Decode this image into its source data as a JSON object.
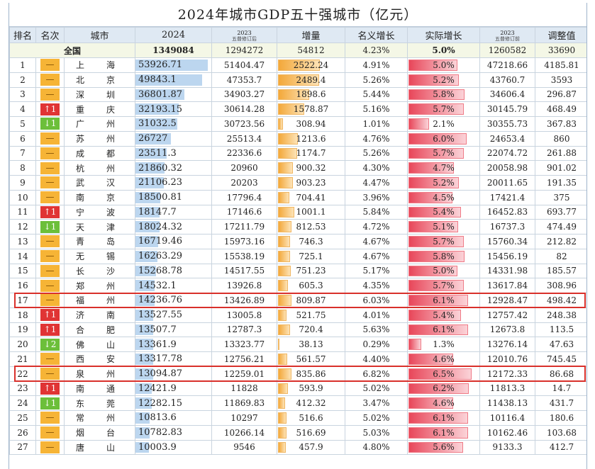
{
  "title": "2024年城市GDP五十强城市（亿元）",
  "headers": {
    "rank": "排名",
    "mingci": "名次",
    "city": "城市",
    "y2024": "2024",
    "rev_year": "2023",
    "rev_note": "五普修订后",
    "increase": "增量",
    "nominal": "名义增长",
    "real": "实际增长",
    "prev_year": "2023",
    "prev_note": "五普修订前",
    "adjust": "调整值"
  },
  "national": {
    "label": "全国",
    "gdp2024": "1349084",
    "gdp2023_rev": "1294272",
    "increase": "54812",
    "nominal": "4.23%",
    "real": "5.0%",
    "gdp2023_prev": "1260582",
    "adjust": "33690"
  },
  "colors": {
    "same": "#f6b436",
    "up": "#e03434",
    "down": "#6cbf3a",
    "highlight": "#d9302b"
  },
  "rows": [
    {
      "rank": "1",
      "mc": "—",
      "mct": "same",
      "city": "上海",
      "gdp": "53926.71",
      "gdpv": 53926.71,
      "rev": "51404.47",
      "inc": "2522.24",
      "incv": 2522.24,
      "nom": "4.91%",
      "real": "5.0%",
      "realv": 5.0,
      "prev": "47218.66",
      "adj": "4185.81"
    },
    {
      "rank": "2",
      "mc": "—",
      "mct": "same",
      "city": "北京",
      "gdp": "49843.1",
      "gdpv": 49843.1,
      "rev": "47353.7",
      "inc": "2489.4",
      "incv": 2489.4,
      "nom": "5.26%",
      "real": "5.2%",
      "realv": 5.2,
      "prev": "43760.7",
      "adj": "3593"
    },
    {
      "rank": "3",
      "mc": "—",
      "mct": "same",
      "city": "深圳",
      "gdp": "36801.87",
      "gdpv": 36801.87,
      "rev": "34903.27",
      "inc": "1898.6",
      "incv": 1898.6,
      "nom": "5.44%",
      "real": "5.8%",
      "realv": 5.8,
      "prev": "34606.4",
      "adj": "296.87"
    },
    {
      "rank": "4",
      "mc": "↑1",
      "mct": "up",
      "city": "重庆",
      "gdp": "32193.15",
      "gdpv": 32193.15,
      "rev": "30614.28",
      "inc": "1578.87",
      "incv": 1578.87,
      "nom": "5.16%",
      "real": "5.7%",
      "realv": 5.7,
      "prev": "30145.79",
      "adj": "468.49"
    },
    {
      "rank": "5",
      "mc": "↓1",
      "mct": "down",
      "city": "广州",
      "gdp": "31032.5",
      "gdpv": 31032.5,
      "rev": "30723.56",
      "inc": "308.94",
      "incv": 308.94,
      "nom": "1.01%",
      "real": "2.1%",
      "realv": 2.1,
      "prev": "30355.73",
      "adj": "367.83"
    },
    {
      "rank": "6",
      "mc": "—",
      "mct": "same",
      "city": "苏州",
      "gdp": "26727",
      "gdpv": 26727,
      "rev": "25513.4",
      "inc": "1213.6",
      "incv": 1213.6,
      "nom": "4.76%",
      "real": "6.0%",
      "realv": 6.0,
      "prev": "24653.4",
      "adj": "860"
    },
    {
      "rank": "7",
      "mc": "—",
      "mct": "same",
      "city": "成都",
      "gdp": "23511.3",
      "gdpv": 23511.3,
      "rev": "22336.6",
      "inc": "1174.7",
      "incv": 1174.7,
      "nom": "5.26%",
      "real": "5.7%",
      "realv": 5.7,
      "prev": "22074.72",
      "adj": "261.88"
    },
    {
      "rank": "8",
      "mc": "—",
      "mct": "same",
      "city": "杭州",
      "gdp": "21860.32",
      "gdpv": 21860.32,
      "rev": "20960",
      "inc": "900.32",
      "incv": 900.32,
      "nom": "4.30%",
      "real": "4.7%",
      "realv": 4.7,
      "prev": "20058.98",
      "adj": "901.02"
    },
    {
      "rank": "9",
      "mc": "—",
      "mct": "same",
      "city": "武汉",
      "gdp": "21106.23",
      "gdpv": 21106.23,
      "rev": "20203",
      "inc": "903.23",
      "incv": 903.23,
      "nom": "4.47%",
      "real": "5.2%",
      "realv": 5.2,
      "prev": "20011.65",
      "adj": "191.35"
    },
    {
      "rank": "10",
      "mc": "—",
      "mct": "same",
      "city": "南京",
      "gdp": "18500.81",
      "gdpv": 18500.81,
      "rev": "17796.4",
      "inc": "704.41",
      "incv": 704.41,
      "nom": "3.96%",
      "real": "4.5%",
      "realv": 4.5,
      "prev": "17421.4",
      "adj": "375"
    },
    {
      "rank": "11",
      "mc": "↑1",
      "mct": "up",
      "city": "宁波",
      "gdp": "18147.7",
      "gdpv": 18147.7,
      "rev": "17146.6",
      "inc": "1001.1",
      "incv": 1001.1,
      "nom": "5.84%",
      "real": "5.4%",
      "realv": 5.4,
      "prev": "16452.83",
      "adj": "693.77"
    },
    {
      "rank": "12",
      "mc": "↓1",
      "mct": "down",
      "city": "天津",
      "gdp": "18024.32",
      "gdpv": 18024.32,
      "rev": "17211.79",
      "inc": "812.53",
      "incv": 812.53,
      "nom": "4.72%",
      "real": "5.1%",
      "realv": 5.1,
      "prev": "16737.3",
      "adj": "474.49"
    },
    {
      "rank": "13",
      "mc": "—",
      "mct": "same",
      "city": "青岛",
      "gdp": "16719.46",
      "gdpv": 16719.46,
      "rev": "15973.16",
      "inc": "746.3",
      "incv": 746.3,
      "nom": "4.67%",
      "real": "5.7%",
      "realv": 5.7,
      "prev": "15760.34",
      "adj": "212.82"
    },
    {
      "rank": "14",
      "mc": "—",
      "mct": "same",
      "city": "无锡",
      "gdp": "16263.29",
      "gdpv": 16263.29,
      "rev": "15538.19",
      "inc": "725.1",
      "incv": 725.1,
      "nom": "4.67%",
      "real": "5.8%",
      "realv": 5.8,
      "prev": "15456.19",
      "adj": "82"
    },
    {
      "rank": "15",
      "mc": "—",
      "mct": "same",
      "city": "长沙",
      "gdp": "15268.78",
      "gdpv": 15268.78,
      "rev": "14517.55",
      "inc": "751.23",
      "incv": 751.23,
      "nom": "5.17%",
      "real": "5.0%",
      "realv": 5.0,
      "prev": "14331.98",
      "adj": "185.57"
    },
    {
      "rank": "16",
      "mc": "—",
      "mct": "same",
      "city": "郑州",
      "gdp": "14532.1",
      "gdpv": 14532.1,
      "rev": "13926.8",
      "inc": "605.3",
      "incv": 605.3,
      "nom": "4.35%",
      "real": "5.7%",
      "realv": 5.7,
      "prev": "13617.84",
      "adj": "308.96"
    },
    {
      "rank": "17",
      "mc": "—",
      "mct": "same",
      "city": "福州",
      "gdp": "14236.76",
      "gdpv": 14236.76,
      "rev": "13426.89",
      "inc": "809.87",
      "incv": 809.87,
      "nom": "6.03%",
      "real": "6.1%",
      "realv": 6.1,
      "prev": "12928.47",
      "adj": "498.42",
      "hl": true
    },
    {
      "rank": "18",
      "mc": "↑1",
      "mct": "up",
      "city": "济南",
      "gdp": "13527.55",
      "gdpv": 13527.55,
      "rev": "13005.8",
      "inc": "521.75",
      "incv": 521.75,
      "nom": "4.01%",
      "real": "5.4%",
      "realv": 5.4,
      "prev": "12757.42",
      "adj": "248.38"
    },
    {
      "rank": "19",
      "mc": "↑1",
      "mct": "up",
      "city": "合肥",
      "gdp": "13507.7",
      "gdpv": 13507.7,
      "rev": "12787.3",
      "inc": "720.4",
      "incv": 720.4,
      "nom": "5.63%",
      "real": "6.1%",
      "realv": 6.1,
      "prev": "12673.8",
      "adj": "113.5"
    },
    {
      "rank": "20",
      "mc": "↓2",
      "mct": "down",
      "city": "佛山",
      "gdp": "13361.9",
      "gdpv": 13361.9,
      "rev": "13323.77",
      "inc": "38.13",
      "incv": 38.13,
      "nom": "0.29%",
      "real": "1.3%",
      "realv": 1.3,
      "prev": "13276.14",
      "adj": "47.63"
    },
    {
      "rank": "21",
      "mc": "—",
      "mct": "same",
      "city": "西安",
      "gdp": "13317.78",
      "gdpv": 13317.78,
      "rev": "12756.21",
      "inc": "561.57",
      "incv": 561.57,
      "nom": "4.40%",
      "real": "4.6%",
      "realv": 4.6,
      "prev": "12010.76",
      "adj": "745.45"
    },
    {
      "rank": "22",
      "mc": "—",
      "mct": "same",
      "city": "泉州",
      "gdp": "13094.87",
      "gdpv": 13094.87,
      "rev": "12259.01",
      "inc": "835.86",
      "incv": 835.86,
      "nom": "6.82%",
      "real": "6.5%",
      "realv": 6.5,
      "prev": "12172.33",
      "adj": "86.68",
      "hl": true
    },
    {
      "rank": "23",
      "mc": "↑1",
      "mct": "up",
      "city": "南通",
      "gdp": "12421.9",
      "gdpv": 12421.9,
      "rev": "11828",
      "inc": "593.9",
      "incv": 593.9,
      "nom": "5.02%",
      "real": "6.2%",
      "realv": 6.2,
      "prev": "11813.3",
      "adj": "14.7"
    },
    {
      "rank": "24",
      "mc": "↓1",
      "mct": "down",
      "city": "东莞",
      "gdp": "12282.15",
      "gdpv": 12282.15,
      "rev": "11869.83",
      "inc": "412.32",
      "incv": 412.32,
      "nom": "3.47%",
      "real": "4.6%",
      "realv": 4.6,
      "prev": "11438.13",
      "adj": "431.7"
    },
    {
      "rank": "25",
      "mc": "—",
      "mct": "same",
      "city": "常州",
      "gdp": "10813.6",
      "gdpv": 10813.6,
      "rev": "10297",
      "inc": "516.6",
      "incv": 516.6,
      "nom": "5.02%",
      "real": "6.1%",
      "realv": 6.1,
      "prev": "10116.4",
      "adj": "180.6"
    },
    {
      "rank": "26",
      "mc": "—",
      "mct": "same",
      "city": "烟台",
      "gdp": "10782.83",
      "gdpv": 10782.83,
      "rev": "10266.14",
      "inc": "516.69",
      "incv": 516.69,
      "nom": "5.03%",
      "real": "6.1%",
      "realv": 6.1,
      "prev": "10162.46",
      "adj": "103.68"
    },
    {
      "rank": "27",
      "mc": "—",
      "mct": "same",
      "city": "唐山",
      "gdp": "10003.9",
      "gdpv": 10003.9,
      "rev": "9546",
      "inc": "457.9",
      "incv": 457.9,
      "nom": "4.80%",
      "real": "5.6%",
      "realv": 5.6,
      "prev": "9133.3",
      "adj": "412.7"
    }
  ]
}
